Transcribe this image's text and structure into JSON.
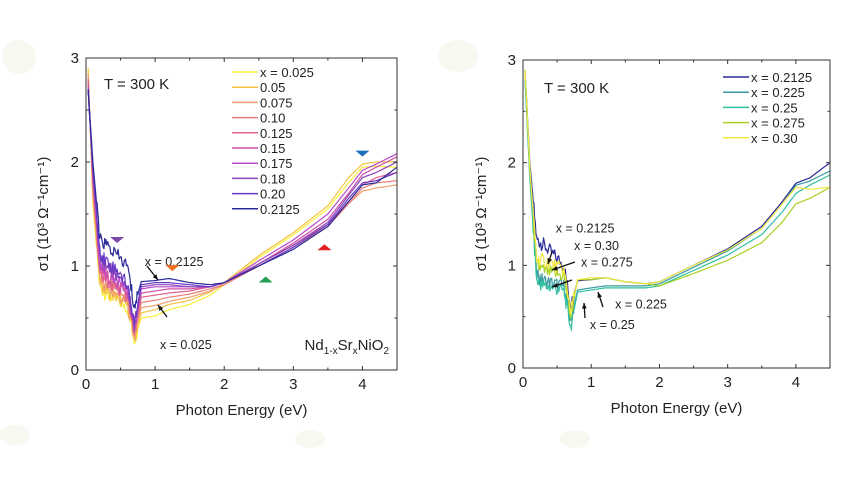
{
  "chart_data": [
    {
      "type": "line",
      "title": "",
      "annotation_temperature": "T = 300 K",
      "compound_label": {
        "base1": "Nd",
        "sub1": "1-x",
        "base2": "Sr",
        "sub2": "x",
        "base3": "NiO",
        "sub3": "2"
      },
      "xlabel": "Photon Energy (eV)",
      "ylabel": "σ1 (10³ Ω⁻¹cm⁻¹)",
      "xlim": [
        0,
        4.5
      ],
      "ylim": [
        0,
        3
      ],
      "xticks": [
        0,
        1,
        2,
        3,
        4
      ],
      "yticks": [
        0,
        1,
        2,
        3
      ],
      "grid": false,
      "legend_position": "top-right",
      "x": [
        0.03,
        0.1,
        0.2,
        0.3,
        0.45,
        0.6,
        0.7,
        0.8,
        1.0,
        1.2,
        1.5,
        1.8,
        2.0,
        2.5,
        3.0,
        3.5,
        3.8,
        4.0,
        4.2,
        4.5
      ],
      "series": [
        {
          "name": "x = 0.025",
          "color": "#f7f03a",
          "values": [
            2.9,
            1.6,
            0.8,
            0.72,
            0.68,
            0.6,
            0.3,
            0.5,
            0.52,
            0.58,
            0.63,
            0.72,
            0.82,
            1.08,
            1.3,
            1.55,
            1.8,
            1.95,
            1.96,
            1.95
          ]
        },
        {
          "name": "0.05",
          "color": "#f5c342",
          "values": [
            2.9,
            1.65,
            0.85,
            0.75,
            0.7,
            0.62,
            0.3,
            0.55,
            0.58,
            0.63,
            0.67,
            0.75,
            0.84,
            1.1,
            1.32,
            1.58,
            1.85,
            1.98,
            2.0,
            2.0
          ]
        },
        {
          "name": "0.075",
          "color": "#f0a070",
          "values": [
            2.85,
            1.7,
            0.88,
            0.78,
            0.72,
            0.64,
            0.32,
            0.6,
            0.62,
            0.66,
            0.7,
            0.76,
            0.82,
            1.02,
            1.2,
            1.4,
            1.6,
            1.72,
            1.75,
            1.78
          ]
        },
        {
          "name": "0.10",
          "color": "#ea7f7a",
          "values": [
            2.8,
            1.75,
            0.92,
            0.82,
            0.76,
            0.68,
            0.35,
            0.65,
            0.67,
            0.7,
            0.73,
            0.78,
            0.82,
            1.0,
            1.18,
            1.38,
            1.6,
            1.75,
            1.8,
            1.82
          ]
        },
        {
          "name": "0.125",
          "color": "#e06090",
          "values": [
            2.8,
            1.8,
            0.96,
            0.86,
            0.8,
            0.72,
            0.38,
            0.7,
            0.72,
            0.74,
            0.76,
            0.8,
            0.84,
            1.02,
            1.2,
            1.4,
            1.62,
            1.78,
            1.85,
            1.9
          ]
        },
        {
          "name": "0.15",
          "color": "#d050a8",
          "values": [
            2.75,
            1.85,
            1.0,
            0.9,
            0.84,
            0.75,
            0.4,
            0.74,
            0.76,
            0.78,
            0.78,
            0.8,
            0.84,
            1.02,
            1.22,
            1.45,
            1.7,
            1.88,
            1.95,
            2.05
          ]
        },
        {
          "name": "0.175",
          "color": "#b848c8",
          "values": [
            2.7,
            1.9,
            1.04,
            0.95,
            0.88,
            0.78,
            0.42,
            0.78,
            0.8,
            0.8,
            0.8,
            0.8,
            0.84,
            1.05,
            1.25,
            1.5,
            1.75,
            1.92,
            1.98,
            2.08
          ]
        },
        {
          "name": "0.18",
          "color": "#8848b8",
          "values": [
            2.7,
            1.9,
            1.08,
            1.0,
            0.92,
            0.8,
            0.42,
            0.8,
            0.82,
            0.82,
            0.8,
            0.8,
            0.84,
            1.02,
            1.2,
            1.42,
            1.68,
            1.85,
            1.9,
            2.0
          ]
        },
        {
          "name": "0.20",
          "color": "#6a38c8",
          "values": [
            2.7,
            1.95,
            1.12,
            1.05,
            0.95,
            0.82,
            0.45,
            0.82,
            0.84,
            0.84,
            0.82,
            0.8,
            0.84,
            1.0,
            1.18,
            1.4,
            1.65,
            1.8,
            1.82,
            1.9
          ]
        },
        {
          "name": "0.2125",
          "color": "#2a2a98",
          "values": [
            2.7,
            2.0,
            1.25,
            1.2,
            1.1,
            1.0,
            0.6,
            0.85,
            0.86,
            0.88,
            0.84,
            0.82,
            0.84,
            1.0,
            1.16,
            1.38,
            1.62,
            1.78,
            1.8,
            1.95
          ]
        }
      ],
      "annotations": [
        {
          "text": "x = 0.2125",
          "x": 0.85,
          "y": 1.0
        },
        {
          "text": "x = 0.025",
          "x": 1.07,
          "y": 0.2
        }
      ],
      "markers": [
        {
          "shape": "triangle-down",
          "color": "#7a4aa8",
          "x": 0.45,
          "y": 1.25
        },
        {
          "shape": "triangle-down",
          "color": "#f07020",
          "x": 1.25,
          "y": 0.98
        },
        {
          "shape": "triangle-up",
          "color": "#20a050",
          "x": 2.6,
          "y": 0.87
        },
        {
          "shape": "triangle-up",
          "color": "#e02020",
          "x": 3.45,
          "y": 1.18
        },
        {
          "shape": "triangle-down",
          "color": "#2070c0",
          "x": 4.0,
          "y": 2.08
        }
      ]
    },
    {
      "type": "line",
      "title": "",
      "annotation_temperature": "T = 300 K",
      "xlabel": "Photon Energy (eV)",
      "ylabel": "σ1 (10³ Ω⁻¹cm⁻¹)",
      "xlim": [
        0,
        4.5
      ],
      "ylim": [
        0,
        3
      ],
      "xticks": [
        0,
        1,
        2,
        3,
        4
      ],
      "yticks": [
        0,
        1,
        2,
        3
      ],
      "grid": false,
      "legend_position": "top-right",
      "x": [
        0.03,
        0.1,
        0.2,
        0.3,
        0.45,
        0.6,
        0.7,
        0.8,
        1.0,
        1.2,
        1.5,
        1.8,
        2.0,
        2.5,
        3.0,
        3.5,
        3.8,
        4.0,
        4.2,
        4.5
      ],
      "series": [
        {
          "name": "x = 0.2125",
          "color": "#2a2a98",
          "values": [
            2.9,
            2.0,
            1.25,
            1.2,
            1.1,
            1.0,
            0.6,
            0.85,
            0.86,
            0.88,
            0.84,
            0.82,
            0.84,
            1.0,
            1.16,
            1.38,
            1.62,
            1.8,
            1.85,
            2.0
          ]
        },
        {
          "name": "x = 0.225",
          "color": "#3a9aa0",
          "values": [
            2.8,
            1.9,
            0.9,
            0.85,
            0.82,
            0.8,
            0.45,
            0.76,
            0.78,
            0.8,
            0.8,
            0.8,
            0.82,
            0.98,
            1.14,
            1.36,
            1.6,
            1.78,
            1.82,
            1.92
          ]
        },
        {
          "name": "x = 0.25",
          "color": "#30c0a0",
          "values": [
            2.8,
            1.85,
            0.85,
            0.8,
            0.78,
            0.75,
            0.4,
            0.74,
            0.76,
            0.78,
            0.78,
            0.78,
            0.8,
            0.95,
            1.1,
            1.3,
            1.52,
            1.7,
            1.78,
            1.88
          ]
        },
        {
          "name": "x = 0.275",
          "color": "#a8d020",
          "values": [
            2.9,
            1.95,
            1.0,
            0.95,
            0.92,
            0.9,
            0.5,
            0.86,
            0.86,
            0.88,
            0.84,
            0.82,
            0.8,
            0.92,
            1.05,
            1.22,
            1.42,
            1.6,
            1.65,
            1.76
          ]
        },
        {
          "name": "x = 0.30",
          "color": "#f0e840",
          "values": [
            2.9,
            1.95,
            1.05,
            1.05,
            1.0,
            0.95,
            0.55,
            0.86,
            0.88,
            0.88,
            0.84,
            0.82,
            0.84,
            1.0,
            1.15,
            1.36,
            1.6,
            1.76,
            1.74,
            1.76
          ]
        }
      ],
      "annotations": [
        {
          "text": "x = 0.2125",
          "x": 0.48,
          "y": 1.32
        },
        {
          "text": "x = 0.30",
          "x": 0.75,
          "y": 1.15
        },
        {
          "text": "x = 0.275",
          "x": 0.85,
          "y": 0.99
        },
        {
          "text": "x = 0.225",
          "x": 1.35,
          "y": 0.58
        },
        {
          "text": "x = 0.25",
          "x": 0.98,
          "y": 0.38
        }
      ],
      "markers": []
    }
  ]
}
